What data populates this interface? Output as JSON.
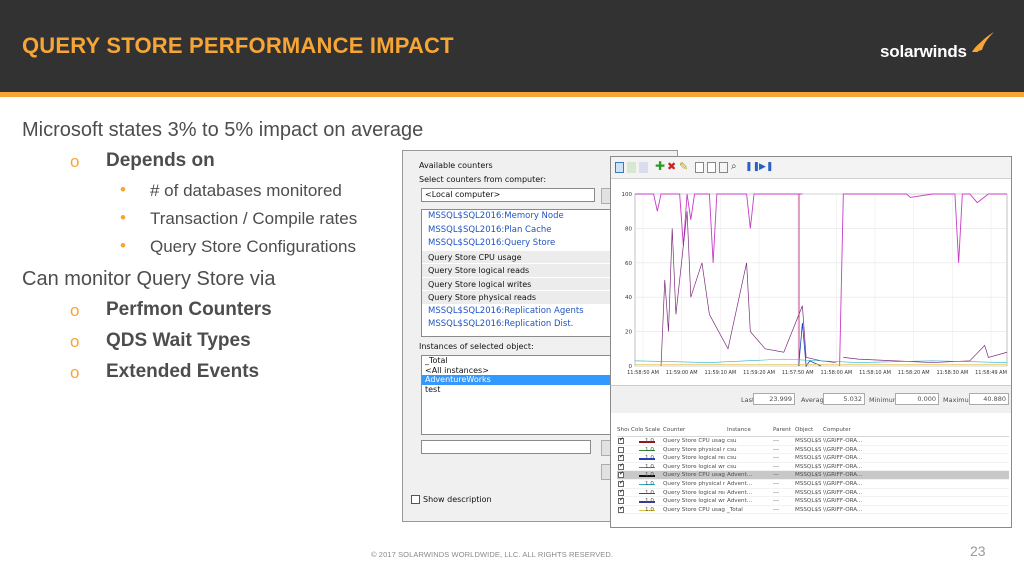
{
  "header": {
    "title": "QUERY STORE PERFORMANCE IMPACT",
    "logo_text": "solarwinds",
    "bg_color": "#323232",
    "accent_color": "#f7a535"
  },
  "bullets": {
    "b1": "Microsoft states 3% to 5% impact on average",
    "b1_sub": "Depends on",
    "b1_items": [
      "# of databases monitored",
      "Transaction / Compile rates",
      "Query Store Configurations"
    ],
    "b2": "Can monitor Query Store via",
    "b2_items": [
      "Perfmon Counters",
      "QDS Wait Types",
      "Extended Events"
    ],
    "marker_l2": "o",
    "marker_l3": "•"
  },
  "counters_dialog": {
    "available_label": "Available counters",
    "select_label": "Select counters from computer:",
    "computer_value": "<Local computer>",
    "counters": [
      {
        "label": "MSSQL$SQL2016:Memory Node",
        "type": "cat"
      },
      {
        "label": "MSSQL$SQL2016:Plan Cache",
        "type": "cat"
      },
      {
        "label": "MSSQL$SQL2016:Query Store",
        "type": "cat"
      },
      {
        "label": "Query Store CPU usage",
        "type": "sub"
      },
      {
        "label": "Query Store logical reads",
        "type": "sub"
      },
      {
        "label": "Query Store logical writes",
        "type": "sub"
      },
      {
        "label": "Query Store physical reads",
        "type": "sub"
      },
      {
        "label": "MSSQL$SQL2016:Replication Agents",
        "type": "cat"
      },
      {
        "label": "MSSQL$SQL2016:Replication Dist.",
        "type": "cat"
      }
    ],
    "instances_label": "Instances of selected object:",
    "instances": [
      "_Total",
      "<All instances>",
      "AdventureWorks",
      "test"
    ],
    "selected_instance": "AdventureWorks",
    "show_description_label": "Show description"
  },
  "perfmon": {
    "y_ticks": [
      "100",
      "80",
      "60",
      "40",
      "20",
      "0"
    ],
    "x_ticks": [
      "11:58:50 AM",
      "11:59:00 AM",
      "11:59:10 AM",
      "11:59:20 AM",
      "11:57:50 AM",
      "11:58:00 AM",
      "11:58:10 AM",
      "11:58:20 AM",
      "11:58:30 AM",
      "11:58:49 AM"
    ],
    "stats": {
      "last_label": "Last",
      "last_value": "23.999",
      "average_label": "Average",
      "average_value": "5.032",
      "minimum_label": "Minimum",
      "minimum_value": "0.000",
      "maximum_label": "Maximum",
      "maximum_value": "40.880"
    },
    "table_headers": [
      "Show",
      "Color",
      "Scale",
      "Counter",
      "Instance",
      "Parent",
      "Object",
      "Computer"
    ],
    "rows": [
      {
        "show": true,
        "color": "#8b1a1a",
        "scale": "1.0",
        "counter": "Query Store CPU usage",
        "instance": "csu",
        "parent": "---",
        "object": "MSSQL$SS2016Q...",
        "computer": "\\\\GRIFF-ORA...",
        "selected": false
      },
      {
        "show": false,
        "color": "#2e8b2e",
        "scale": "1.0",
        "counter": "Query Store physical reads",
        "instance": "csu",
        "parent": "---",
        "object": "MSSQL$SS2016Q...",
        "computer": "\\\\GRIFF-ORA...",
        "selected": false
      },
      {
        "show": true,
        "color": "#1f3fbf",
        "scale": "1.0",
        "counter": "Query Store logical reads",
        "instance": "csu",
        "parent": "---",
        "object": "MSSQL$SS2016Q...",
        "computer": "\\\\GRIFF-ORA...",
        "selected": false
      },
      {
        "show": true,
        "color": "#c83cc8",
        "scale": "1.0",
        "counter": "Query Store logical writes",
        "instance": "csu",
        "parent": "---",
        "object": "MSSQL$SS2016Q...",
        "computer": "\\\\GRIFF-ORA...",
        "selected": false
      },
      {
        "show": true,
        "color": "#111111",
        "scale": "1.0",
        "counter": "Query Store CPU usage",
        "instance": "Advent...",
        "parent": "---",
        "object": "MSSQL$SS2016Q...",
        "computer": "\\\\GRIFF-ORA...",
        "selected": true
      },
      {
        "show": true,
        "color": "#2ab0c8",
        "scale": "1.0",
        "counter": "Query Store physical reads",
        "instance": "Advent...",
        "parent": "---",
        "object": "MSSQL$SS2016Q...",
        "computer": "\\\\GRIFF-ORA...",
        "selected": false
      },
      {
        "show": true,
        "color": "#7b2a7b",
        "scale": "1.0",
        "counter": "Query Store logical reads",
        "instance": "Advent...",
        "parent": "---",
        "object": "MSSQL$SS2016Q...",
        "computer": "\\\\GRIFF-ORA...",
        "selected": false
      },
      {
        "show": true,
        "color": "#3b3b8b",
        "scale": "1.0",
        "counter": "Query Store logical writes",
        "instance": "Advent...",
        "parent": "---",
        "object": "MSSQL$SS2016Q...",
        "computer": "\\\\GRIFF-ORA...",
        "selected": false
      },
      {
        "show": true,
        "color": "#e0c040",
        "scale": "1.0",
        "counter": "Query Store CPU usage",
        "instance": "_Total",
        "parent": "---",
        "object": "MSSQL$SS2016Q...",
        "computer": "\\\\GRIFF-ORA...",
        "selected": false
      }
    ]
  },
  "footer": {
    "copyright": "© 2017 SOLARWINDS WORLDWIDE, LLC. ALL RIGHTS RESERVED.",
    "page_number": "23"
  }
}
